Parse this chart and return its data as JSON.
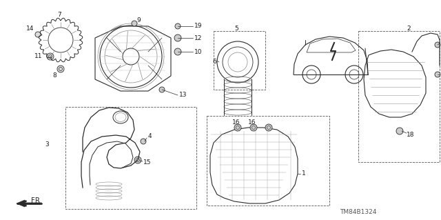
{
  "bg_color": "#ffffff",
  "fig_width": 6.4,
  "fig_height": 3.19,
  "dpi": 100,
  "footer_text": "TM84B1324",
  "line_color": "#2a2a2a",
  "label_color": "#1a1a1a"
}
